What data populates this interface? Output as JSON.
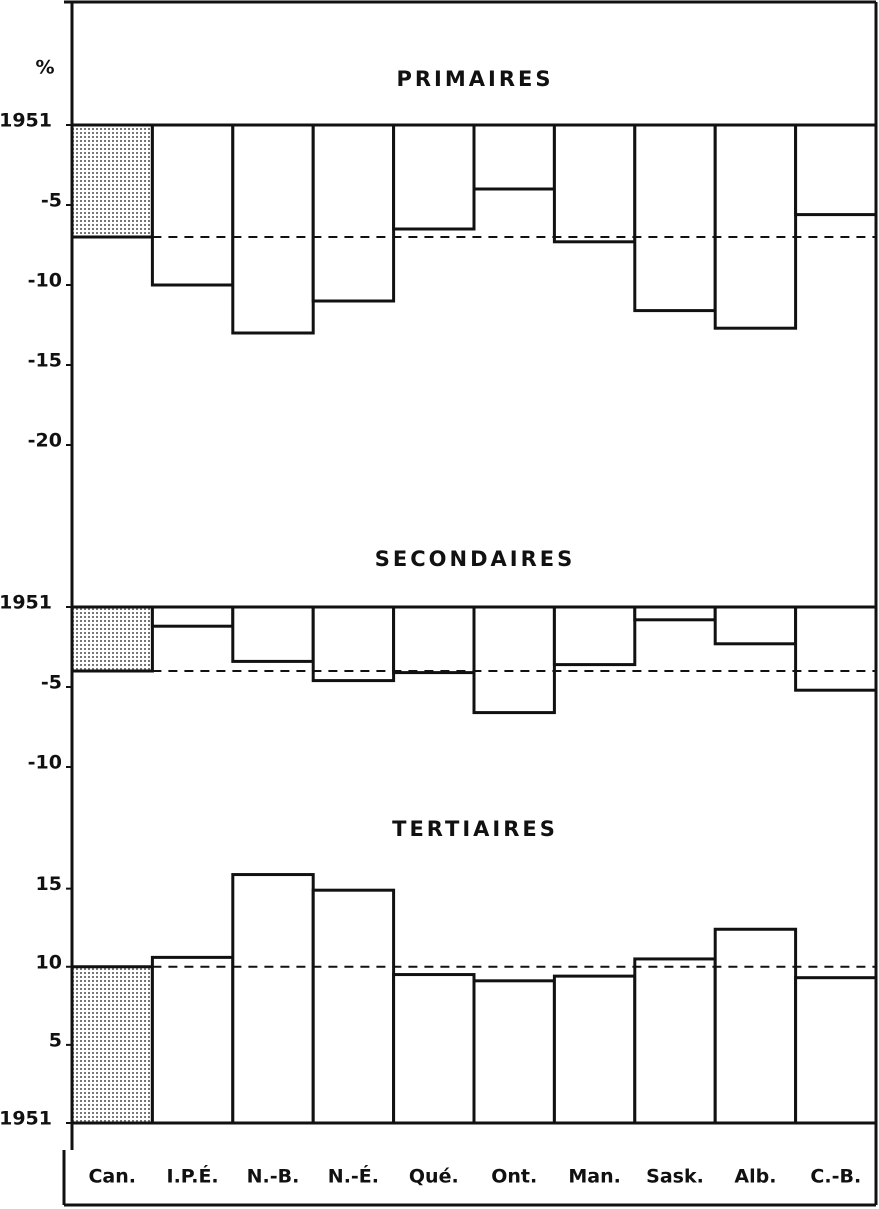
{
  "y_label": "%",
  "chart_data": [
    {
      "type": "bar",
      "title": "PRIMAIRES",
      "color": "#111111",
      "values": [
        -7,
        -10,
        -13,
        -11,
        -6.5,
        -4,
        -7.3,
        -11.6,
        -12.7,
        -5.6
      ],
      "ylim": [
        -25,
        0
      ],
      "yticks": [
        {
          "value": 0,
          "label": "1951"
        },
        -5,
        -10,
        -15,
        -20
      ]
    },
    {
      "type": "bar",
      "title": "SECONDAIRES",
      "color": "#111111",
      "values": [
        -4,
        -1.2,
        -3.4,
        -4.6,
        -4.1,
        -6.6,
        -3.6,
        -0.8,
        -2.3,
        -5.2
      ],
      "ylim": [
        -11,
        0
      ],
      "yticks": [
        {
          "value": 0,
          "label": "1951"
        },
        -5,
        -10
      ]
    },
    {
      "type": "bar",
      "title": "TERTIAIRES",
      "color": "#111111",
      "categories": [
        "Can.",
        "I.P.É.",
        "N.-B.",
        "N.-É.",
        "Qué.",
        "Ont.",
        "Man.",
        "Sask.",
        "Alb.",
        "C.-B."
      ],
      "values": [
        10,
        10.6,
        15.9,
        14.9,
        9.5,
        9.1,
        9.4,
        10.5,
        12.4,
        9.3
      ],
      "ylim": [
        0,
        16
      ],
      "yticks": [
        {
          "value": 0,
          "label": "1951"
        },
        5,
        10,
        15
      ]
    }
  ]
}
